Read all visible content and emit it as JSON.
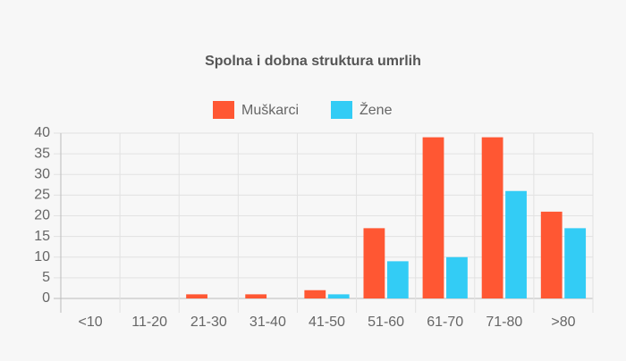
{
  "chart_data": {
    "type": "bar",
    "title": "Spolna i dobna struktura umrlih",
    "categories": [
      "<10",
      "11-20",
      "21-30",
      "31-40",
      "41-50",
      "51-60",
      "61-70",
      "71-80",
      ">80"
    ],
    "series": [
      {
        "name": "Muškarci",
        "color": "#ff5733",
        "values": [
          0,
          0,
          1,
          1,
          2,
          17,
          39,
          39,
          21
        ]
      },
      {
        "name": "Žene",
        "color": "#33ccf5",
        "values": [
          0,
          0,
          0,
          0,
          1,
          9,
          10,
          26,
          17
        ]
      }
    ],
    "ylim": [
      0,
      40
    ],
    "yticks": [
      0,
      5,
      10,
      15,
      20,
      25,
      30,
      35,
      40
    ],
    "grid": true,
    "legend": "top"
  }
}
